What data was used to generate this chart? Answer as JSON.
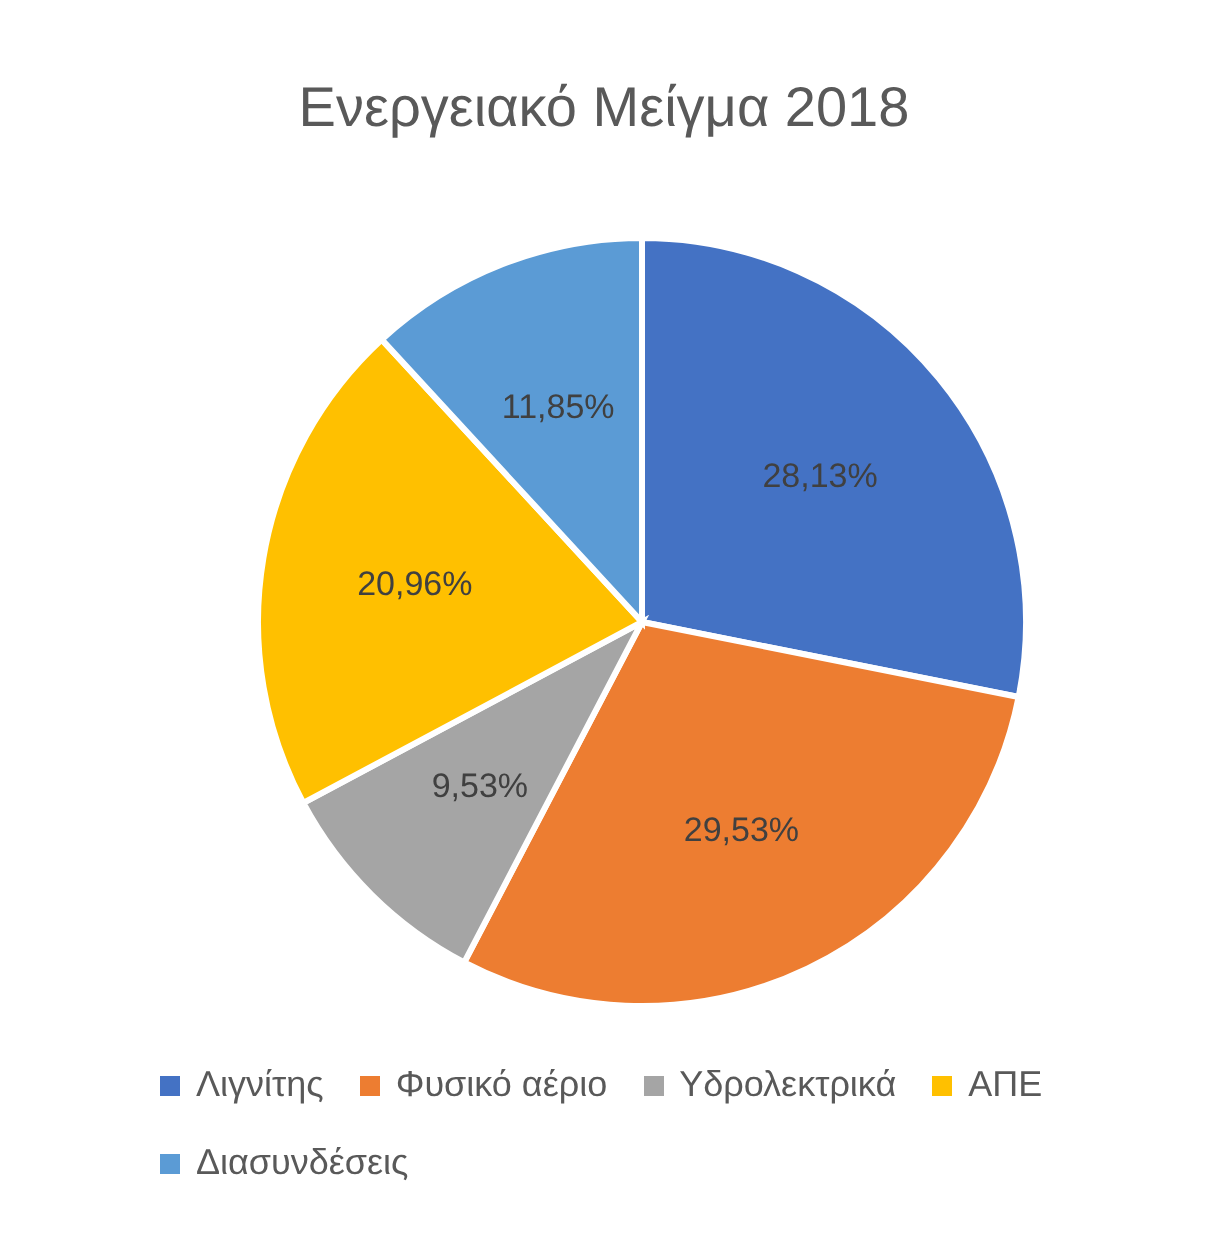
{
  "chart_data": {
    "type": "pie",
    "title": "Ενεργειακό Μείγμα 2018",
    "categories": [
      "Λιγνίτης",
      "Φυσικό αέριο",
      "Υδρολεκτρικά",
      "ΑΠΕ",
      "Διασυνδέσεις"
    ],
    "values": [
      28.13,
      29.53,
      9.53,
      20.96,
      11.85
    ],
    "colors": [
      "#4472c4",
      "#ed7d31",
      "#a5a5a5",
      "#ffc000",
      "#5b9bd5"
    ],
    "value_labels": [
      "28,13%",
      "29,53%",
      "9,53%",
      "20,96%",
      "11,85%"
    ],
    "legend": "bottom"
  }
}
